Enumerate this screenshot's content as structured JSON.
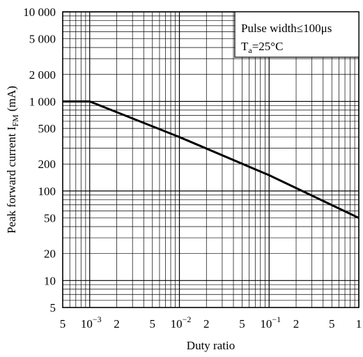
{
  "chart_data": {
    "type": "line",
    "xlabel": "Duty ratio",
    "ylabel_prefix": "Peak forward current I",
    "ylabel_sub": "FM",
    "ylabel_suffix": " (mA)",
    "x_scale": "log",
    "y_scale": "log",
    "xlim": [
      0.0005,
      1
    ],
    "ylim": [
      5,
      10000
    ],
    "grid": true,
    "x_ticks": [
      {
        "value": 0.0005,
        "base": "5",
        "exp": ""
      },
      {
        "value": 0.001,
        "base": "10",
        "exp": "−3"
      },
      {
        "value": 0.002,
        "base": "2",
        "exp": ""
      },
      {
        "value": 0.005,
        "base": "5",
        "exp": ""
      },
      {
        "value": 0.01,
        "base": "10",
        "exp": "−2"
      },
      {
        "value": 0.02,
        "base": "2",
        "exp": ""
      },
      {
        "value": 0.05,
        "base": "5",
        "exp": ""
      },
      {
        "value": 0.1,
        "base": "10",
        "exp": "−1"
      },
      {
        "value": 0.2,
        "base": "2",
        "exp": ""
      },
      {
        "value": 0.5,
        "base": "5",
        "exp": ""
      },
      {
        "value": 1,
        "base": "1",
        "exp": ""
      }
    ],
    "y_ticks": [
      {
        "value": 10000,
        "label": "10 000"
      },
      {
        "value": 5000,
        "label": "5 000"
      },
      {
        "value": 2000,
        "label": "2 000"
      },
      {
        "value": 1000,
        "label": "1 000"
      },
      {
        "value": 500,
        "label": "500"
      },
      {
        "value": 200,
        "label": "200"
      },
      {
        "value": 100,
        "label": "100"
      },
      {
        "value": 50,
        "label": "50"
      },
      {
        "value": 20,
        "label": "20"
      },
      {
        "value": 10,
        "label": "10"
      },
      {
        "value": 5,
        "label": "5"
      }
    ],
    "series": [
      {
        "x": [
          0.0005,
          0.001,
          0.01,
          0.1,
          1
        ],
        "y": [
          1000,
          1000,
          400,
          150,
          50
        ]
      }
    ],
    "annotation": {
      "line1": "Pulse width≤100μs",
      "line2_prefix": "T",
      "line2_sub": "a",
      "line2_suffix": "=25°C"
    }
  }
}
